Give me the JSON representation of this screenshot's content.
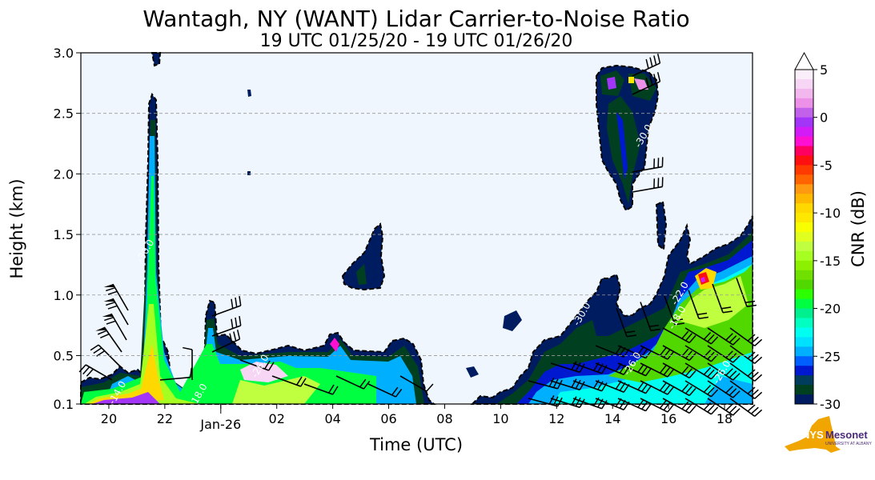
{
  "chart_data": {
    "type": "heatmap",
    "title": "Wantagh, NY (WANT) Lidar Carrier-to-Noise Ratio",
    "subtitle": "19 UTC 01/25/20 - 19 UTC 01/26/20",
    "xlabel": "Time (UTC)",
    "ylabel": "Height (km)",
    "x_range_hours": [
      0,
      24
    ],
    "x_ticks": [
      {
        "hour": 1,
        "label": "20"
      },
      {
        "hour": 3,
        "label": "22"
      },
      {
        "hour": 5,
        "label": "Jan-26"
      },
      {
        "hour": 7,
        "label": "02"
      },
      {
        "hour": 9,
        "label": "04"
      },
      {
        "hour": 11,
        "label": "06"
      },
      {
        "hour": 13,
        "label": "08"
      },
      {
        "hour": 15,
        "label": "10"
      },
      {
        "hour": 17,
        "label": "12"
      },
      {
        "hour": 19,
        "label": "14"
      },
      {
        "hour": 21,
        "label": "16"
      },
      {
        "hour": 23,
        "label": "18"
      }
    ],
    "ylim": [
      0.1,
      3.0
    ],
    "y_ticks": [
      {
        "value": 0.1,
        "label": "0.1"
      },
      {
        "value": 0.5,
        "label": "0.5"
      },
      {
        "value": 1.0,
        "label": "1.0"
      },
      {
        "value": 1.5,
        "label": "1.5"
      },
      {
        "value": 2.0,
        "label": "2.0"
      },
      {
        "value": 2.5,
        "label": "2.5"
      },
      {
        "value": 3.0,
        "label": "3.0"
      }
    ],
    "grid": "horizontal dashed",
    "colorbar": {
      "label": "CNR (dB)",
      "range": [
        -30,
        5
      ],
      "extend": "max",
      "ticks": [
        {
          "value": 5,
          "label": "5"
        },
        {
          "value": 0,
          "label": "0"
        },
        {
          "value": -5,
          "label": "-5"
        },
        {
          "value": -10,
          "label": "-10"
        },
        {
          "value": -15,
          "label": "-15"
        },
        {
          "value": -20,
          "label": "-20"
        },
        {
          "value": -25,
          "label": "-25"
        },
        {
          "value": -30,
          "label": "-30"
        }
      ],
      "colors_top_to_bottom": [
        "#fbeefb",
        "#f6d6f4",
        "#f2b8ee",
        "#ec90e8",
        "#c262ea",
        "#a235f8",
        "#d21bf7",
        "#ff0fd2",
        "#ff0060",
        "#ff1010",
        "#ff3a00",
        "#ff6400",
        "#ff9a10",
        "#ffb800",
        "#ffd800",
        "#ffe800",
        "#f8ff00",
        "#e0ff20",
        "#c0ff40",
        "#a6ff20",
        "#8cf000",
        "#70e000",
        "#50d800",
        "#2cff00",
        "#00ff40",
        "#00f090",
        "#00ffc0",
        "#00fff0",
        "#00e0ff",
        "#00b0ff",
        "#0060ff",
        "#0018d0",
        "#003c5c",
        "#004020",
        "#001c60"
      ]
    },
    "contour_labels": [
      {
        "hour": 2.4,
        "km": 1.35,
        "label": "-30.0"
      },
      {
        "hour": 1.4,
        "km": 0.18,
        "label": "-14.0"
      },
      {
        "hour": 4.3,
        "km": 0.16,
        "label": "-18.0"
      },
      {
        "hour": 6.5,
        "km": 0.4,
        "label": "-26.0"
      },
      {
        "hour": 18.0,
        "km": 0.83,
        "label": "-30.0"
      },
      {
        "hour": 19.8,
        "km": 0.42,
        "label": "-26.0"
      },
      {
        "hour": 21.4,
        "km": 0.8,
        "label": "-18.0"
      },
      {
        "hour": 21.5,
        "km": 1.0,
        "label": "-22.0"
      },
      {
        "hour": 23.0,
        "km": 0.35,
        "label": "-26.0"
      },
      {
        "hour": 20.2,
        "km": 2.3,
        "label": "-30.0"
      }
    ],
    "background_color": "#eff6fd"
  },
  "logo": {
    "text": "NYS Mesonet",
    "subtext": "UNIVERSITY AT ALBANY"
  }
}
